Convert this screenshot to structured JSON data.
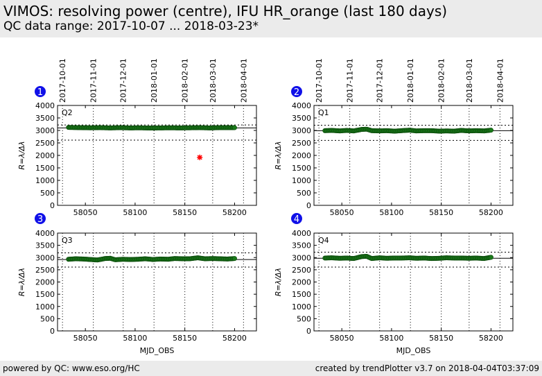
{
  "header": {
    "title": "VIMOS: resolving power (centre), IFU HR_orange (last 180 days)",
    "subtitle": "QC data range: 2017-10-07 ... 2018-03-23*"
  },
  "footer": {
    "left": "powered by QC: www.eso.org/HC",
    "right": "created by trendPlotter v3.7 on 2018-04-04T03:37:09"
  },
  "colors": {
    "data_point": "#1a7a1a",
    "outlier": "#ff0000",
    "badge": "#1010e8",
    "header_bg": "#ebebeb"
  },
  "chart_data": [
    {
      "type": "scatter",
      "badge": "1",
      "quadrant": "Q2",
      "ylabel": "R=λ/Δλ",
      "xlabel": "",
      "xlim": [
        58022,
        58222
      ],
      "ylim": [
        0,
        4000
      ],
      "yticks": [
        0,
        500,
        1000,
        1500,
        2000,
        2500,
        3000,
        3500,
        4000
      ],
      "xticks": [
        58050,
        58100,
        58150,
        58200
      ],
      "date_ticks": [
        "2017-10-01",
        "2017-11-01",
        "2017-12-01",
        "2018-01-01",
        "2018-02-01",
        "2018-03-01",
        "2018-04-01"
      ],
      "ref_line": 3100,
      "limits": [
        2610,
        3220
      ],
      "trend": [
        [
          58033,
          3120
        ],
        [
          58045,
          3110
        ],
        [
          58055,
          3105
        ],
        [
          58065,
          3110
        ],
        [
          58075,
          3100
        ],
        [
          58085,
          3110
        ],
        [
          58095,
          3100
        ],
        [
          58105,
          3105
        ],
        [
          58115,
          3095
        ],
        [
          58125,
          3100
        ],
        [
          58135,
          3105
        ],
        [
          58145,
          3100
        ],
        [
          58155,
          3105
        ],
        [
          58165,
          3110
        ],
        [
          58175,
          3100
        ],
        [
          58185,
          3110
        ],
        [
          58195,
          3110
        ],
        [
          58200,
          3110
        ]
      ],
      "outliers": [
        [
          58165,
          1920
        ]
      ]
    },
    {
      "type": "scatter",
      "badge": "2",
      "quadrant": "Q1",
      "ylabel": "R=λ/Δλ",
      "xlabel": "",
      "xlim": [
        58022,
        58222
      ],
      "ylim": [
        0,
        4000
      ],
      "yticks": [
        0,
        500,
        1000,
        1500,
        2000,
        2500,
        3000,
        3500,
        4000
      ],
      "xticks": [
        58050,
        58100,
        58150,
        58200
      ],
      "date_ticks": [
        "2017-10-01",
        "2017-11-01",
        "2017-12-01",
        "2018-01-01",
        "2018-02-01",
        "2018-03-01",
        "2018-04-01"
      ],
      "ref_line": 2990,
      "limits": [
        2600,
        3210
      ],
      "trend": [
        [
          58033,
          2990
        ],
        [
          58040,
          3000
        ],
        [
          58048,
          2980
        ],
        [
          58055,
          3000
        ],
        [
          58062,
          2980
        ],
        [
          58070,
          3040
        ],
        [
          58075,
          3050
        ],
        [
          58080,
          2990
        ],
        [
          58088,
          2980
        ],
        [
          58095,
          2990
        ],
        [
          58103,
          2970
        ],
        [
          58110,
          2990
        ],
        [
          58118,
          3010
        ],
        [
          58125,
          2980
        ],
        [
          58133,
          2990
        ],
        [
          58140,
          2990
        ],
        [
          58148,
          2970
        ],
        [
          58155,
          2980
        ],
        [
          58163,
          2970
        ],
        [
          58170,
          3000
        ],
        [
          58178,
          2980
        ],
        [
          58185,
          2990
        ],
        [
          58193,
          2980
        ],
        [
          58200,
          3010
        ]
      ],
      "outliers": []
    },
    {
      "type": "scatter",
      "badge": "3",
      "quadrant": "Q3",
      "ylabel": "R=λ/Δλ",
      "xlabel": "MJD_OBS",
      "xlim": [
        58022,
        58222
      ],
      "ylim": [
        0,
        4000
      ],
      "yticks": [
        0,
        500,
        1000,
        1500,
        2000,
        2500,
        3000,
        3500,
        4000
      ],
      "xticks": [
        58050,
        58100,
        58150,
        58200
      ],
      "ref_line": 2920,
      "limits": [
        2610,
        3190
      ],
      "trend": [
        [
          58033,
          2930
        ],
        [
          58040,
          2950
        ],
        [
          58048,
          2940
        ],
        [
          58055,
          2920
        ],
        [
          58062,
          2900
        ],
        [
          58070,
          2960
        ],
        [
          58075,
          2970
        ],
        [
          58080,
          2910
        ],
        [
          58088,
          2930
        ],
        [
          58095,
          2920
        ],
        [
          58103,
          2930
        ],
        [
          58110,
          2950
        ],
        [
          58118,
          2920
        ],
        [
          58125,
          2940
        ],
        [
          58133,
          2930
        ],
        [
          58140,
          2960
        ],
        [
          58148,
          2950
        ],
        [
          58155,
          2950
        ],
        [
          58163,
          2990
        ],
        [
          58170,
          2950
        ],
        [
          58178,
          2960
        ],
        [
          58185,
          2950
        ],
        [
          58193,
          2940
        ],
        [
          58200,
          2960
        ]
      ],
      "outliers": []
    },
    {
      "type": "scatter",
      "badge": "4",
      "quadrant": "Q4",
      "ylabel": "R=λ/Δλ",
      "xlabel": "MJD_OBS",
      "xlim": [
        58022,
        58222
      ],
      "ylim": [
        0,
        4000
      ],
      "yticks": [
        0,
        500,
        1000,
        1500,
        2000,
        2500,
        3000,
        3500,
        4000
      ],
      "xticks": [
        58050,
        58100,
        58150,
        58200
      ],
      "ref_line": 2970,
      "limits": [
        2610,
        3220
      ],
      "trend": [
        [
          58033,
          2980
        ],
        [
          58040,
          2990
        ],
        [
          58048,
          2970
        ],
        [
          58055,
          2980
        ],
        [
          58062,
          2960
        ],
        [
          58070,
          3040
        ],
        [
          58075,
          3050
        ],
        [
          58080,
          2960
        ],
        [
          58088,
          2990
        ],
        [
          58095,
          2970
        ],
        [
          58103,
          2980
        ],
        [
          58110,
          2980
        ],
        [
          58118,
          2990
        ],
        [
          58125,
          2970
        ],
        [
          58133,
          2980
        ],
        [
          58140,
          2960
        ],
        [
          58148,
          2970
        ],
        [
          58155,
          2990
        ],
        [
          58163,
          2980
        ],
        [
          58170,
          2980
        ],
        [
          58178,
          2970
        ],
        [
          58185,
          2980
        ],
        [
          58193,
          2960
        ],
        [
          58200,
          3010
        ]
      ],
      "outliers": []
    }
  ]
}
